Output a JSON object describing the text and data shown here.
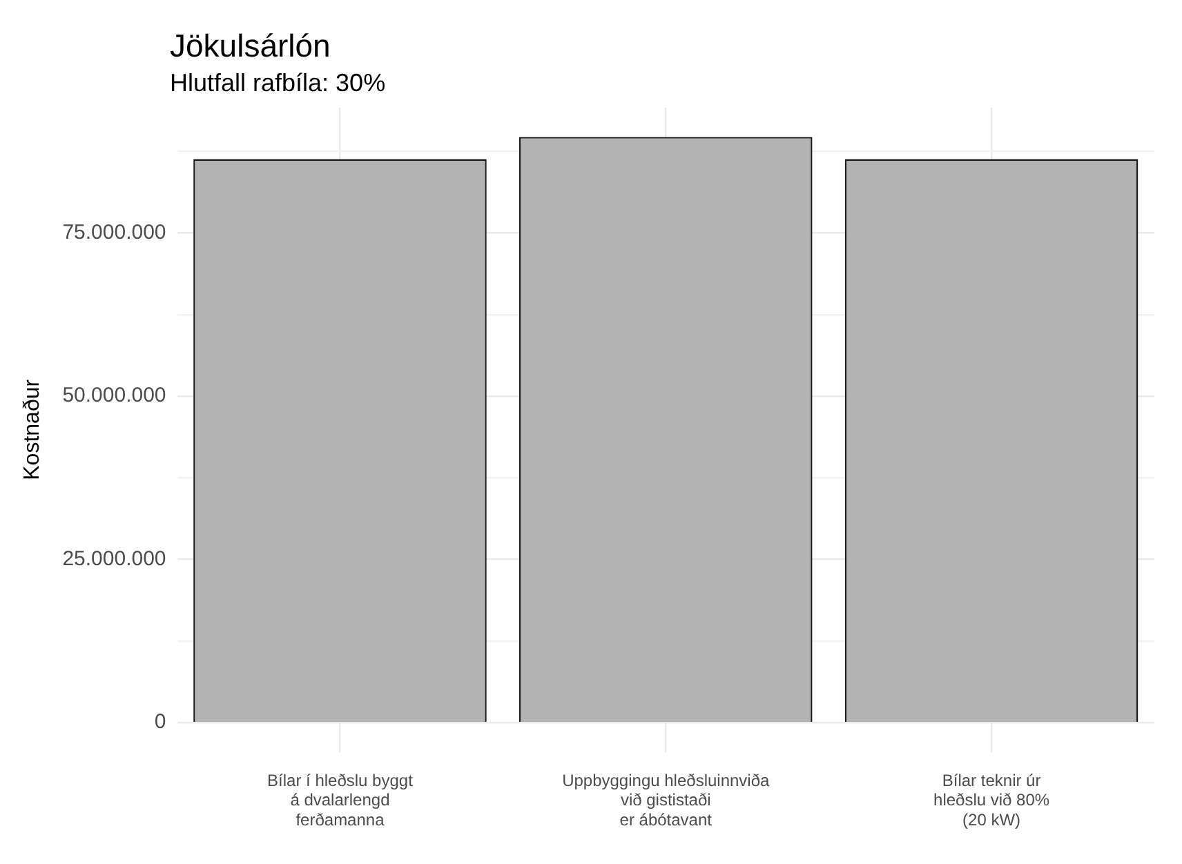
{
  "chart_data": {
    "type": "bar",
    "title": "Jökulsárlón",
    "subtitle": "Hlutfall rafbíla: 30%",
    "ylabel": "Kostnaður",
    "categories": [
      "Bílar í hleðslu byggt\ná dvalarlengd\nferðamanna",
      "Uppbyggingu hleðsluinnviða\nvið gististaði\ner ábótavant",
      "Bílar teknir úr\nhleðslu við 80%\n(20 kW)"
    ],
    "values": [
      86300000,
      89700000,
      86300000
    ],
    "color": "#b3b3b3",
    "ylim": [
      -4485000,
      94185000
    ],
    "yticks": [
      {
        "value": 0,
        "label": "0"
      },
      {
        "value": 12500000,
        "label": null
      },
      {
        "value": 25000000,
        "label": "25.000.000"
      },
      {
        "value": 37500000,
        "label": null
      },
      {
        "value": 50000000,
        "label": "50.000.000"
      },
      {
        "value": 62500000,
        "label": null
      },
      {
        "value": 75000000,
        "label": "75.000.000"
      },
      {
        "value": 87500000,
        "label": null
      }
    ],
    "grid": true
  }
}
